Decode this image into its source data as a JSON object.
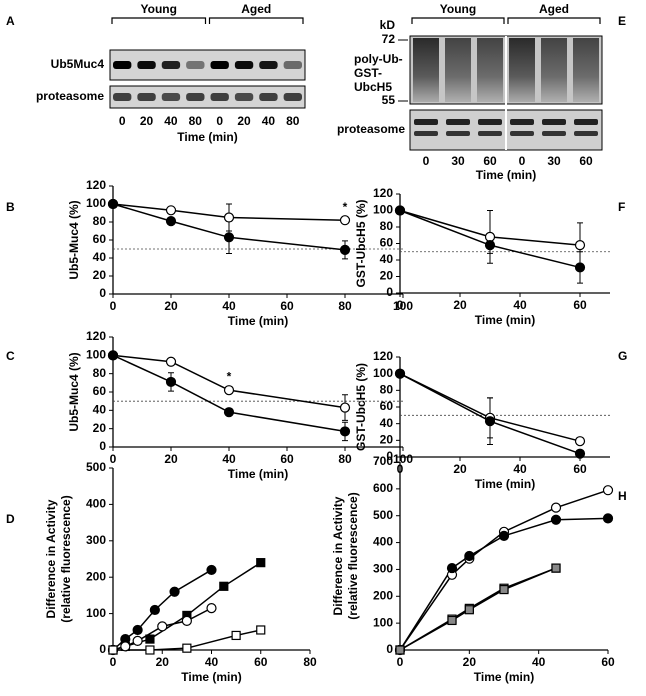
{
  "blots": [
    {
      "label": "A",
      "groups": [
        "Young",
        "Aged"
      ],
      "rows": [
        "Ub5Muc4",
        "proteasome"
      ],
      "lanes": [
        0,
        20,
        40,
        80,
        0,
        20,
        40,
        80
      ],
      "x_label": "Time (min)"
    },
    {
      "label": "E",
      "groups": [
        "Young",
        "Aged"
      ],
      "unit": "kD",
      "markers": [
        72,
        55
      ],
      "blot_label": [
        "poly-Ub-",
        "GST-",
        "UbcH5"
      ],
      "rows": [
        "proteasome"
      ],
      "lanes": [
        0,
        30,
        60,
        0,
        30,
        60
      ],
      "x_label": "Time (min)"
    }
  ],
  "chart_data": [
    {
      "label": "B",
      "type": "line",
      "y_label": "Ub5-Muc4 (%)",
      "x_label": "Time (min)",
      "x": [
        0,
        20,
        40,
        80
      ],
      "xlim": [
        0,
        100
      ],
      "xticks": [
        0,
        20,
        40,
        60,
        80,
        100
      ],
      "ylim": [
        0,
        120
      ],
      "yticks": [
        0,
        20,
        40,
        60,
        80,
        100,
        120
      ],
      "reference_line": 50,
      "series": [
        {
          "marker": "circle",
          "color": "#ffffff",
          "values": [
            100,
            93,
            85,
            82
          ],
          "errors": [
            null,
            null,
            15,
            4
          ]
        },
        {
          "marker": "circle",
          "color": "#000000",
          "values": [
            100,
            81,
            63,
            49
          ],
          "errors": [
            null,
            null,
            18,
            10
          ]
        }
      ],
      "annotations": [
        {
          "text": "*",
          "x": 80,
          "y": 96
        }
      ]
    },
    {
      "label": "C",
      "type": "line",
      "y_label": "Ub5-Muc4 (%)",
      "x_label": "Time (min)",
      "x": [
        0,
        20,
        40,
        80
      ],
      "xlim": [
        0,
        100
      ],
      "xticks": [
        0,
        20,
        40,
        60,
        80,
        100
      ],
      "ylim": [
        0,
        120
      ],
      "yticks": [
        0,
        20,
        40,
        60,
        80,
        100,
        120
      ],
      "reference_line": 50,
      "series": [
        {
          "marker": "circle",
          "color": "#ffffff",
          "values": [
            100,
            93,
            62,
            43
          ],
          "errors": [
            null,
            null,
            4,
            14
          ]
        },
        {
          "marker": "circle",
          "color": "#000000",
          "values": [
            100,
            71,
            38,
            17
          ],
          "errors": [
            null,
            10,
            4,
            10
          ]
        }
      ],
      "annotations": [
        {
          "text": "*",
          "x": 40,
          "y": 76
        }
      ]
    },
    {
      "label": "D",
      "type": "line",
      "y_label": [
        "Difference in Activity",
        "(relative fluorescence)"
      ],
      "x_label": "Time (min)",
      "xlim": [
        0,
        80
      ],
      "xticks": [
        0,
        20,
        40,
        60,
        80
      ],
      "ylim": [
        0,
        500
      ],
      "yticks": [
        0,
        100,
        200,
        300,
        400,
        500
      ],
      "series": [
        {
          "marker": "circle",
          "color": "#000000",
          "x": [
            0,
            5,
            10,
            17,
            25,
            40
          ],
          "values": [
            0,
            30,
            55,
            110,
            160,
            220
          ]
        },
        {
          "marker": "square",
          "color": "#000000",
          "x": [
            0,
            5,
            15,
            30,
            45,
            60
          ],
          "values": [
            0,
            10,
            30,
            95,
            175,
            240
          ]
        },
        {
          "marker": "circle",
          "color": "#ffffff",
          "x": [
            0,
            5,
            10,
            20,
            30,
            40
          ],
          "values": [
            0,
            10,
            25,
            65,
            80,
            115
          ]
        },
        {
          "marker": "square",
          "color": "#ffffff",
          "x": [
            0,
            15,
            30,
            50,
            60
          ],
          "values": [
            0,
            0,
            5,
            40,
            55
          ]
        }
      ]
    },
    {
      "label": "F",
      "type": "line",
      "y_label": "GST-UbcH5 (%)",
      "x_label": "Time (min)",
      "x": [
        0,
        30,
        60
      ],
      "xlim": [
        0,
        70
      ],
      "xticks": [
        0,
        20,
        40,
        60
      ],
      "ylim": [
        0,
        120
      ],
      "yticks": [
        0,
        20,
        40,
        60,
        80,
        100,
        120
      ],
      "reference_line": 50,
      "series": [
        {
          "marker": "circle",
          "color": "#ffffff",
          "values": [
            100,
            68,
            58
          ],
          "errors": [
            null,
            32,
            27
          ]
        },
        {
          "marker": "circle",
          "color": "#000000",
          "values": [
            100,
            58,
            31
          ],
          "errors": [
            null,
            10,
            19
          ]
        }
      ]
    },
    {
      "label": "G",
      "type": "line",
      "y_label": "GST-UbcH5 (%)",
      "x_label": "Time (min)",
      "x": [
        0,
        30,
        60
      ],
      "xlim": [
        0,
        70
      ],
      "xticks": [
        0,
        20,
        40,
        60
      ],
      "ylim": [
        0,
        120
      ],
      "yticks": [
        0,
        20,
        40,
        60,
        80,
        100,
        120
      ],
      "reference_line": 50,
      "series": [
        {
          "marker": "circle",
          "color": "#ffffff",
          "values": [
            100,
            47,
            19
          ],
          "errors": [
            null,
            24,
            null
          ]
        },
        {
          "marker": "circle",
          "color": "#000000",
          "values": [
            100,
            43,
            4
          ],
          "errors": [
            null,
            28,
            null
          ]
        }
      ]
    },
    {
      "label": "H",
      "type": "line",
      "y_label": [
        "Difference in Activity",
        "(relative fluorescence)"
      ],
      "x_label": "Time (min)",
      "xlim": [
        0,
        60
      ],
      "xticks": [
        0,
        20,
        40,
        60
      ],
      "ylim": [
        0,
        700
      ],
      "yticks": [
        0,
        100,
        200,
        300,
        400,
        500,
        600,
        700
      ],
      "series": [
        {
          "marker": "circle",
          "color": "#ffffff",
          "x": [
            0,
            15,
            20,
            30,
            45,
            60
          ],
          "values": [
            0,
            280,
            340,
            440,
            530,
            595
          ]
        },
        {
          "marker": "circle",
          "color": "#000000",
          "x": [
            0,
            15,
            20,
            30,
            45,
            60
          ],
          "values": [
            0,
            305,
            350,
            425,
            485,
            490
          ]
        },
        {
          "marker": "square",
          "color": "#ffffff",
          "x": [
            0,
            15,
            20,
            30,
            45
          ],
          "values": [
            0,
            115,
            155,
            230,
            305
          ]
        },
        {
          "marker": "square",
          "color": "#888888",
          "x": [
            0,
            15,
            20,
            30,
            45
          ],
          "values": [
            0,
            110,
            150,
            225,
            305
          ]
        }
      ]
    }
  ]
}
